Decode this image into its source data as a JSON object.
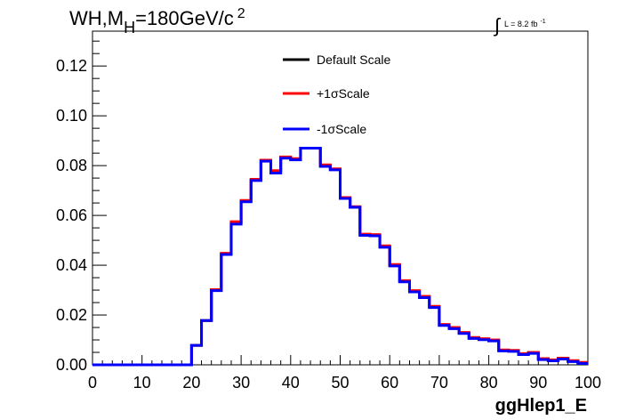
{
  "chart_data": {
    "type": "line",
    "title": {
      "main": "WH,M",
      "sub": "H",
      "rest": "=180GeV/c",
      "sup": "2"
    },
    "lumi": {
      "integral": "∫",
      "text": "L = 8.2 fb",
      "sup": "-1"
    },
    "xlabel": "ggHlep1_E",
    "ylabel": "",
    "xlim": [
      0,
      100
    ],
    "ylim": [
      0,
      0.134
    ],
    "x_ticks": [
      0,
      10,
      20,
      30,
      40,
      50,
      60,
      70,
      80,
      90,
      100
    ],
    "x_tick_labels": [
      "0",
      "10",
      "20",
      "30",
      "40",
      "50",
      "60",
      "70",
      "80",
      "90",
      "100"
    ],
    "y_ticks": [
      0.0,
      0.02,
      0.04,
      0.06,
      0.08,
      0.1,
      0.12
    ],
    "y_tick_labels": [
      "0.00",
      "0.02",
      "0.04",
      "0.06",
      "0.08",
      "0.10",
      "0.12"
    ],
    "grid": false,
    "legend_position": "top-center",
    "bin_edges": [
      0,
      2,
      4,
      6,
      8,
      10,
      12,
      14,
      16,
      18,
      20,
      22,
      24,
      26,
      28,
      30,
      32,
      34,
      36,
      38,
      40,
      42,
      44,
      46,
      48,
      50,
      52,
      54,
      56,
      58,
      60,
      62,
      64,
      66,
      68,
      70,
      72,
      74,
      76,
      78,
      80,
      82,
      84,
      86,
      88,
      90,
      92,
      94,
      96,
      98,
      100
    ],
    "series": [
      {
        "name": "Default Scale",
        "color": "#000000",
        "values": [
          0,
          0,
          0,
          0,
          0,
          0,
          0,
          0,
          0,
          0,
          0.0078,
          0.0178,
          0.03,
          0.0445,
          0.057,
          0.0658,
          0.0742,
          0.082,
          0.0775,
          0.0833,
          0.0825,
          0.087,
          0.087,
          0.08,
          0.0785,
          0.067,
          0.0633,
          0.0523,
          0.052,
          0.0475,
          0.04,
          0.0335,
          0.0295,
          0.0273,
          0.0233,
          0.016,
          0.0148,
          0.0128,
          0.0108,
          0.0103,
          0.0098,
          0.0058,
          0.0056,
          0.0043,
          0.0048,
          0.0023,
          0.0018,
          0.0025,
          0.0015,
          0.0008
        ]
      },
      {
        "name": "+1σScale",
        "color": "#ff0000",
        "values": [
          0,
          0,
          0,
          0,
          0,
          0,
          0,
          0,
          0,
          0,
          0.0078,
          0.0178,
          0.0302,
          0.0448,
          0.0575,
          0.066,
          0.0745,
          0.0822,
          0.078,
          0.0835,
          0.0828,
          0.087,
          0.087,
          0.0803,
          0.0787,
          0.0672,
          0.0635,
          0.0525,
          0.0523,
          0.0478,
          0.0403,
          0.0338,
          0.0298,
          0.0275,
          0.0235,
          0.0162,
          0.015,
          0.013,
          0.011,
          0.0105,
          0.01,
          0.006,
          0.0058,
          0.0045,
          0.005,
          0.0025,
          0.002,
          0.0027,
          0.0017,
          0.001
        ]
      },
      {
        "name": "-1σScale",
        "color": "#0000ff",
        "values": [
          0,
          0,
          0,
          0,
          0,
          0,
          0,
          0,
          0,
          0,
          0.0078,
          0.0178,
          0.0298,
          0.0443,
          0.0565,
          0.0655,
          0.074,
          0.0818,
          0.077,
          0.083,
          0.0823,
          0.087,
          0.087,
          0.0797,
          0.0783,
          0.0668,
          0.0633,
          0.052,
          0.0518,
          0.0472,
          0.0397,
          0.0333,
          0.0293,
          0.027,
          0.023,
          0.0158,
          0.0145,
          0.0126,
          0.0106,
          0.0101,
          0.0096,
          0.0056,
          0.0054,
          0.0041,
          0.0046,
          0.0021,
          0.0016,
          0.0023,
          0.0013,
          0.0006
        ]
      }
    ]
  }
}
